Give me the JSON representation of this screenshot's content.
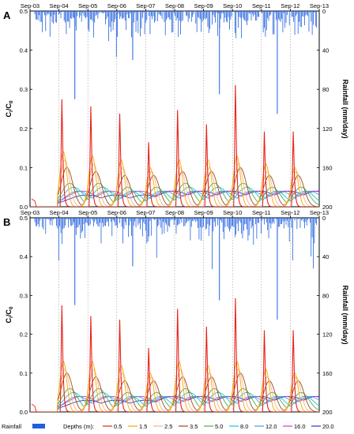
{
  "chart_data": [
    {
      "type": "line",
      "panel_label": "A",
      "ylabel": "C_i/C_0",
      "ylabel_right": "Rainfall (mm/day)",
      "ylim": [
        0,
        0.5
      ],
      "rain_ylim_inverted": [
        200,
        0
      ],
      "x_ticks": [
        "Sep-03",
        "Sep-04",
        "Sep-05",
        "Sep-06",
        "Sep-07",
        "Sep-08",
        "Sep-09",
        "Sep-10",
        "Sep-11",
        "Sep-12",
        "Sep-13"
      ],
      "y_ticks": [
        "0.0",
        "0.1",
        "0.2",
        "0.3",
        "0.4",
        "0.5"
      ],
      "y2_ticks": [
        "200",
        "160",
        "120",
        "80",
        "40",
        "0"
      ],
      "breakthrough_peaks": [
        {
          "depth": "0.5",
          "values": [
            0.3,
            0.28,
            0.26,
            0.18,
            0.27,
            0.23,
            0.34,
            0.21,
            0.21
          ]
        },
        {
          "depth": "1.5",
          "values": [
            0.14,
            0.13,
            0.12,
            0.1,
            0.12,
            0.12,
            0.13,
            0.11,
            0.1
          ]
        },
        {
          "depth": "2.5",
          "values": [
            0.12,
            0.11,
            0.1,
            0.09,
            0.1,
            0.1,
            0.11,
            0.09,
            0.09
          ]
        },
        {
          "depth": "3.5",
          "values": [
            0.1,
            0.09,
            0.08,
            0.08,
            0.09,
            0.09,
            0.1,
            0.08,
            0.08
          ]
        },
        {
          "depth": "5.0",
          "values": [
            0.06,
            0.06,
            0.05,
            0.05,
            0.06,
            0.06,
            0.06,
            0.05,
            0.05
          ]
        },
        {
          "depth": "8.0",
          "values": [
            0.05,
            0.05,
            0.04,
            0.04,
            0.05,
            0.05,
            0.05,
            0.04,
            0.04
          ]
        },
        {
          "depth": "12.0",
          "values": [
            0.04,
            0.04,
            0.04,
            0.04,
            0.04,
            0.04,
            0.04,
            0.04,
            0.04
          ]
        },
        {
          "depth": "16.0",
          "values": [
            0.04,
            0.04,
            0.04,
            0.04,
            0.04,
            0.04,
            0.04,
            0.04,
            0.04
          ]
        },
        {
          "depth": "20.0",
          "values": [
            0.03,
            0.03,
            0.03,
            0.04,
            0.04,
            0.04,
            0.04,
            0.04,
            0.04
          ]
        }
      ],
      "rain_spikes_mm_day": [
        {
          "x": "Sep-04",
          "value": 90
        },
        {
          "x": "Sep-06",
          "value": 50
        },
        {
          "x": "Sep-09",
          "value": 85
        },
        {
          "x": "Sep-11",
          "value": 105
        }
      ]
    },
    {
      "type": "line",
      "panel_label": "B",
      "ylabel": "C_i/C_0",
      "ylabel_right": "Rainfall (mm/day)",
      "ylim": [
        0,
        0.5
      ],
      "rain_ylim_inverted": [
        200,
        0
      ],
      "x_ticks": [
        "Sep-03",
        "Sep-04",
        "Sep-05",
        "Sep-06",
        "Sep-07",
        "Sep-08",
        "Sep-09",
        "Sep-10",
        "Sep-11",
        "Sep-12",
        "Sep-13"
      ],
      "y_ticks": [
        "0.0",
        "0.1",
        "0.2",
        "0.3",
        "0.4",
        "0.5"
      ],
      "y2_ticks": [
        "200",
        "160",
        "120",
        "80",
        "40",
        "0"
      ],
      "breakthrough_peaks": [
        {
          "depth": "0.5",
          "values": [
            0.3,
            0.27,
            0.26,
            0.18,
            0.29,
            0.24,
            0.32,
            0.23,
            0.23
          ]
        },
        {
          "depth": "1.5",
          "values": [
            0.13,
            0.13,
            0.12,
            0.1,
            0.13,
            0.12,
            0.13,
            0.11,
            0.1
          ]
        },
        {
          "depth": "2.5",
          "values": [
            0.11,
            0.11,
            0.1,
            0.09,
            0.11,
            0.1,
            0.11,
            0.09,
            0.09
          ]
        },
        {
          "depth": "3.5",
          "values": [
            0.1,
            0.09,
            0.08,
            0.08,
            0.09,
            0.09,
            0.1,
            0.08,
            0.08
          ]
        },
        {
          "depth": "5.0",
          "values": [
            0.06,
            0.06,
            0.05,
            0.05,
            0.06,
            0.06,
            0.06,
            0.05,
            0.05
          ]
        },
        {
          "depth": "8.0",
          "values": [
            0.05,
            0.05,
            0.04,
            0.04,
            0.05,
            0.05,
            0.05,
            0.04,
            0.04
          ]
        },
        {
          "depth": "12.0",
          "values": [
            0.04,
            0.04,
            0.04,
            0.04,
            0.04,
            0.04,
            0.04,
            0.04,
            0.04
          ]
        },
        {
          "depth": "16.0",
          "values": [
            0.04,
            0.04,
            0.04,
            0.04,
            0.04,
            0.04,
            0.04,
            0.04,
            0.04
          ]
        },
        {
          "depth": "20.0",
          "values": [
            0.03,
            0.03,
            0.03,
            0.04,
            0.04,
            0.04,
            0.04,
            0.04,
            0.04
          ]
        }
      ],
      "rain_spikes_mm_day": [
        {
          "x": "Sep-04",
          "value": 90
        },
        {
          "x": "Sep-06",
          "value": 50
        },
        {
          "x": "Sep-09",
          "value": 85
        },
        {
          "x": "Sep-11",
          "value": 105
        }
      ]
    }
  ],
  "legend": {
    "rainfall_label": "Rainfall",
    "depths_label": "Depths (m):",
    "rainfall_color": "#1f5fe0",
    "items": [
      {
        "label": "0.5",
        "color": "#e8221b"
      },
      {
        "label": "1.5",
        "color": "#f6a800"
      },
      {
        "label": "2.5",
        "color": "#f5b48a"
      },
      {
        "label": "3.5",
        "color": "#9b4a1c"
      },
      {
        "label": "5.0",
        "color": "#4caf3f"
      },
      {
        "label": "8.0",
        "color": "#1fc3d6"
      },
      {
        "label": "12.0",
        "color": "#45a0e0"
      },
      {
        "label": "16.0",
        "color": "#d23cc6"
      },
      {
        "label": "20.0",
        "color": "#2b36c8"
      }
    ]
  },
  "axes_text": {
    "ylabel_main": "C",
    "ylabel_sub1": "i",
    "ylabel_slash": "/C",
    "ylabel_sub2": "0",
    "ylabel_right": "Rainfall (mm/day)"
  }
}
